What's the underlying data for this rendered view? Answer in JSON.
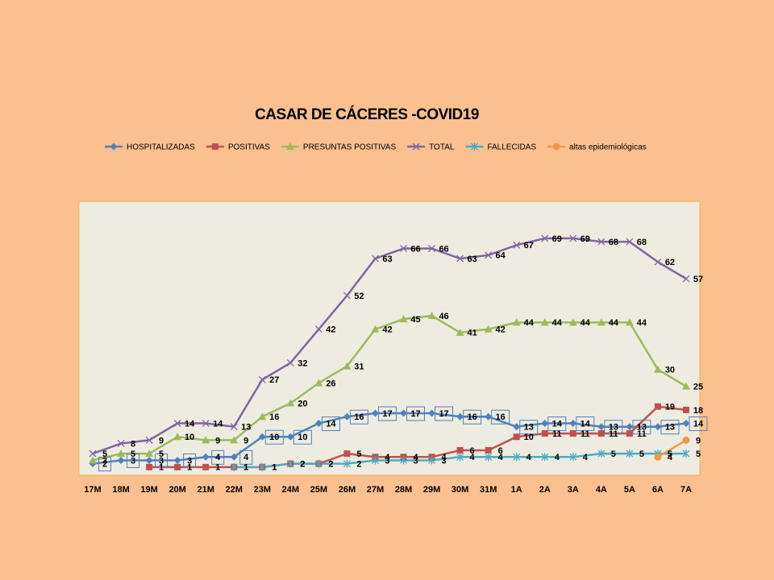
{
  "chart_data": {
    "type": "line",
    "title": "CASAR DE CÁCERES -COVID19",
    "categories": [
      "17M",
      "18M",
      "19M",
      "20M",
      "21M",
      "22M",
      "23M",
      "24M",
      "25M",
      "26M",
      "27M",
      "28M",
      "29M",
      "30M",
      "31M",
      "1A",
      "2A",
      "3A",
      "4A",
      "5A",
      "6A",
      "7A"
    ],
    "ylim": [
      0,
      80
    ],
    "legend": "top",
    "series": [
      {
        "name": "HOSPITALIZADAS",
        "color": "#4f81bd",
        "marker": "diamond",
        "values": [
          2,
          3,
          3,
          3,
          4,
          4,
          10,
          10,
          14,
          16,
          17,
          17,
          17,
          16,
          16,
          13,
          14,
          14,
          13,
          13,
          13,
          14
        ]
      },
      {
        "name": "POSITIVAS",
        "color": "#c0504d",
        "marker": "square",
        "values": [
          null,
          null,
          1,
          1,
          1,
          1,
          1,
          2,
          2,
          5,
          4,
          4,
          4,
          6,
          6,
          10,
          11,
          11,
          11,
          11,
          19,
          18
        ]
      },
      {
        "name": "PRESUNTAS POSITIVAS",
        "color": "#9bbb59",
        "marker": "triangle",
        "values": [
          3,
          5,
          5,
          10,
          9,
          9,
          16,
          20,
          26,
          31,
          42,
          45,
          46,
          41,
          42,
          44,
          44,
          44,
          44,
          44,
          30,
          25
        ]
      },
      {
        "name": "TOTAL",
        "color": "#8064a2",
        "marker": "x",
        "values": [
          5,
          8,
          9,
          14,
          14,
          13,
          27,
          32,
          42,
          52,
          63,
          66,
          66,
          63,
          64,
          67,
          69,
          69,
          68,
          68,
          62,
          57
        ]
      },
      {
        "name": "FALLECIDAS",
        "color": "#4bacc6",
        "marker": "star",
        "values": [
          null,
          null,
          null,
          null,
          null,
          1,
          1,
          2,
          2,
          2,
          3,
          3,
          3,
          4,
          4,
          4,
          4,
          4,
          5,
          5,
          5,
          5
        ]
      },
      {
        "name": "altas epidemiológicas",
        "color": "#f79646",
        "marker": "circle",
        "values": [
          null,
          null,
          null,
          null,
          null,
          null,
          null,
          null,
          null,
          null,
          null,
          null,
          null,
          null,
          null,
          null,
          null,
          null,
          null,
          null,
          4,
          9
        ]
      }
    ]
  }
}
